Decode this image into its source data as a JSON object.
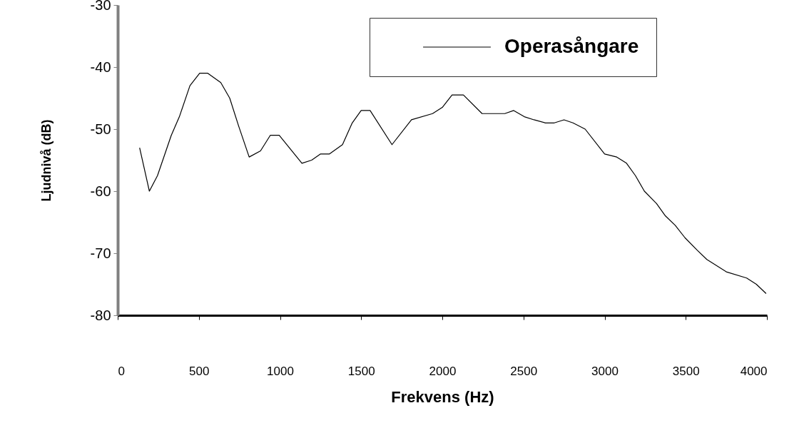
{
  "chart_data": {
    "type": "line",
    "xlabel": "Frekvens (Hz)",
    "ylabel": "Ljudnivå (dB)",
    "x": [
      135,
      195,
      245,
      330,
      380,
      445,
      505,
      555,
      635,
      690,
      745,
      810,
      880,
      940,
      995,
      1135,
      1195,
      1250,
      1305,
      1385,
      1445,
      1500,
      1555,
      1690,
      1810,
      1940,
      2000,
      2060,
      2130,
      2245,
      2385,
      2440,
      2505,
      2565,
      2635,
      2690,
      2750,
      2805,
      2880,
      3000,
      3075,
      3135,
      3190,
      3245,
      3320,
      3375,
      3435,
      3495,
      3570,
      3630,
      3750,
      3875,
      3935,
      3995
    ],
    "series": [
      {
        "name": "Operasångare",
        "color": "#000000",
        "values": [
          -53,
          -60,
          -57.5,
          -51,
          -48,
          -43,
          -41,
          -41,
          -42.5,
          -45,
          -49.5,
          -54.5,
          -53.5,
          -51,
          -51,
          -55.5,
          -55,
          -54,
          -54,
          -52.5,
          -49,
          -47,
          -47,
          -52.5,
          -48.5,
          -47.5,
          -46.5,
          -44.5,
          -44.5,
          -47.5,
          -47.5,
          -47,
          -48,
          -48.5,
          -49,
          -49,
          -48.5,
          -49,
          -50,
          -54,
          -54.5,
          -55.5,
          -57.5,
          -60,
          -62,
          -64,
          -65.5,
          -67.5,
          -69.5,
          -71,
          -73,
          -74,
          -75,
          -76.5
        ]
      }
    ],
    "xlim": [
      0,
      4000
    ],
    "xticks": [
      0,
      500,
      1000,
      1500,
      2000,
      2500,
      3000,
      3500,
      4000
    ],
    "ylim": [
      -80,
      -30
    ],
    "yticks": [
      -80,
      -70,
      -60,
      -50,
      -40,
      -30
    ],
    "legend": "top right"
  }
}
